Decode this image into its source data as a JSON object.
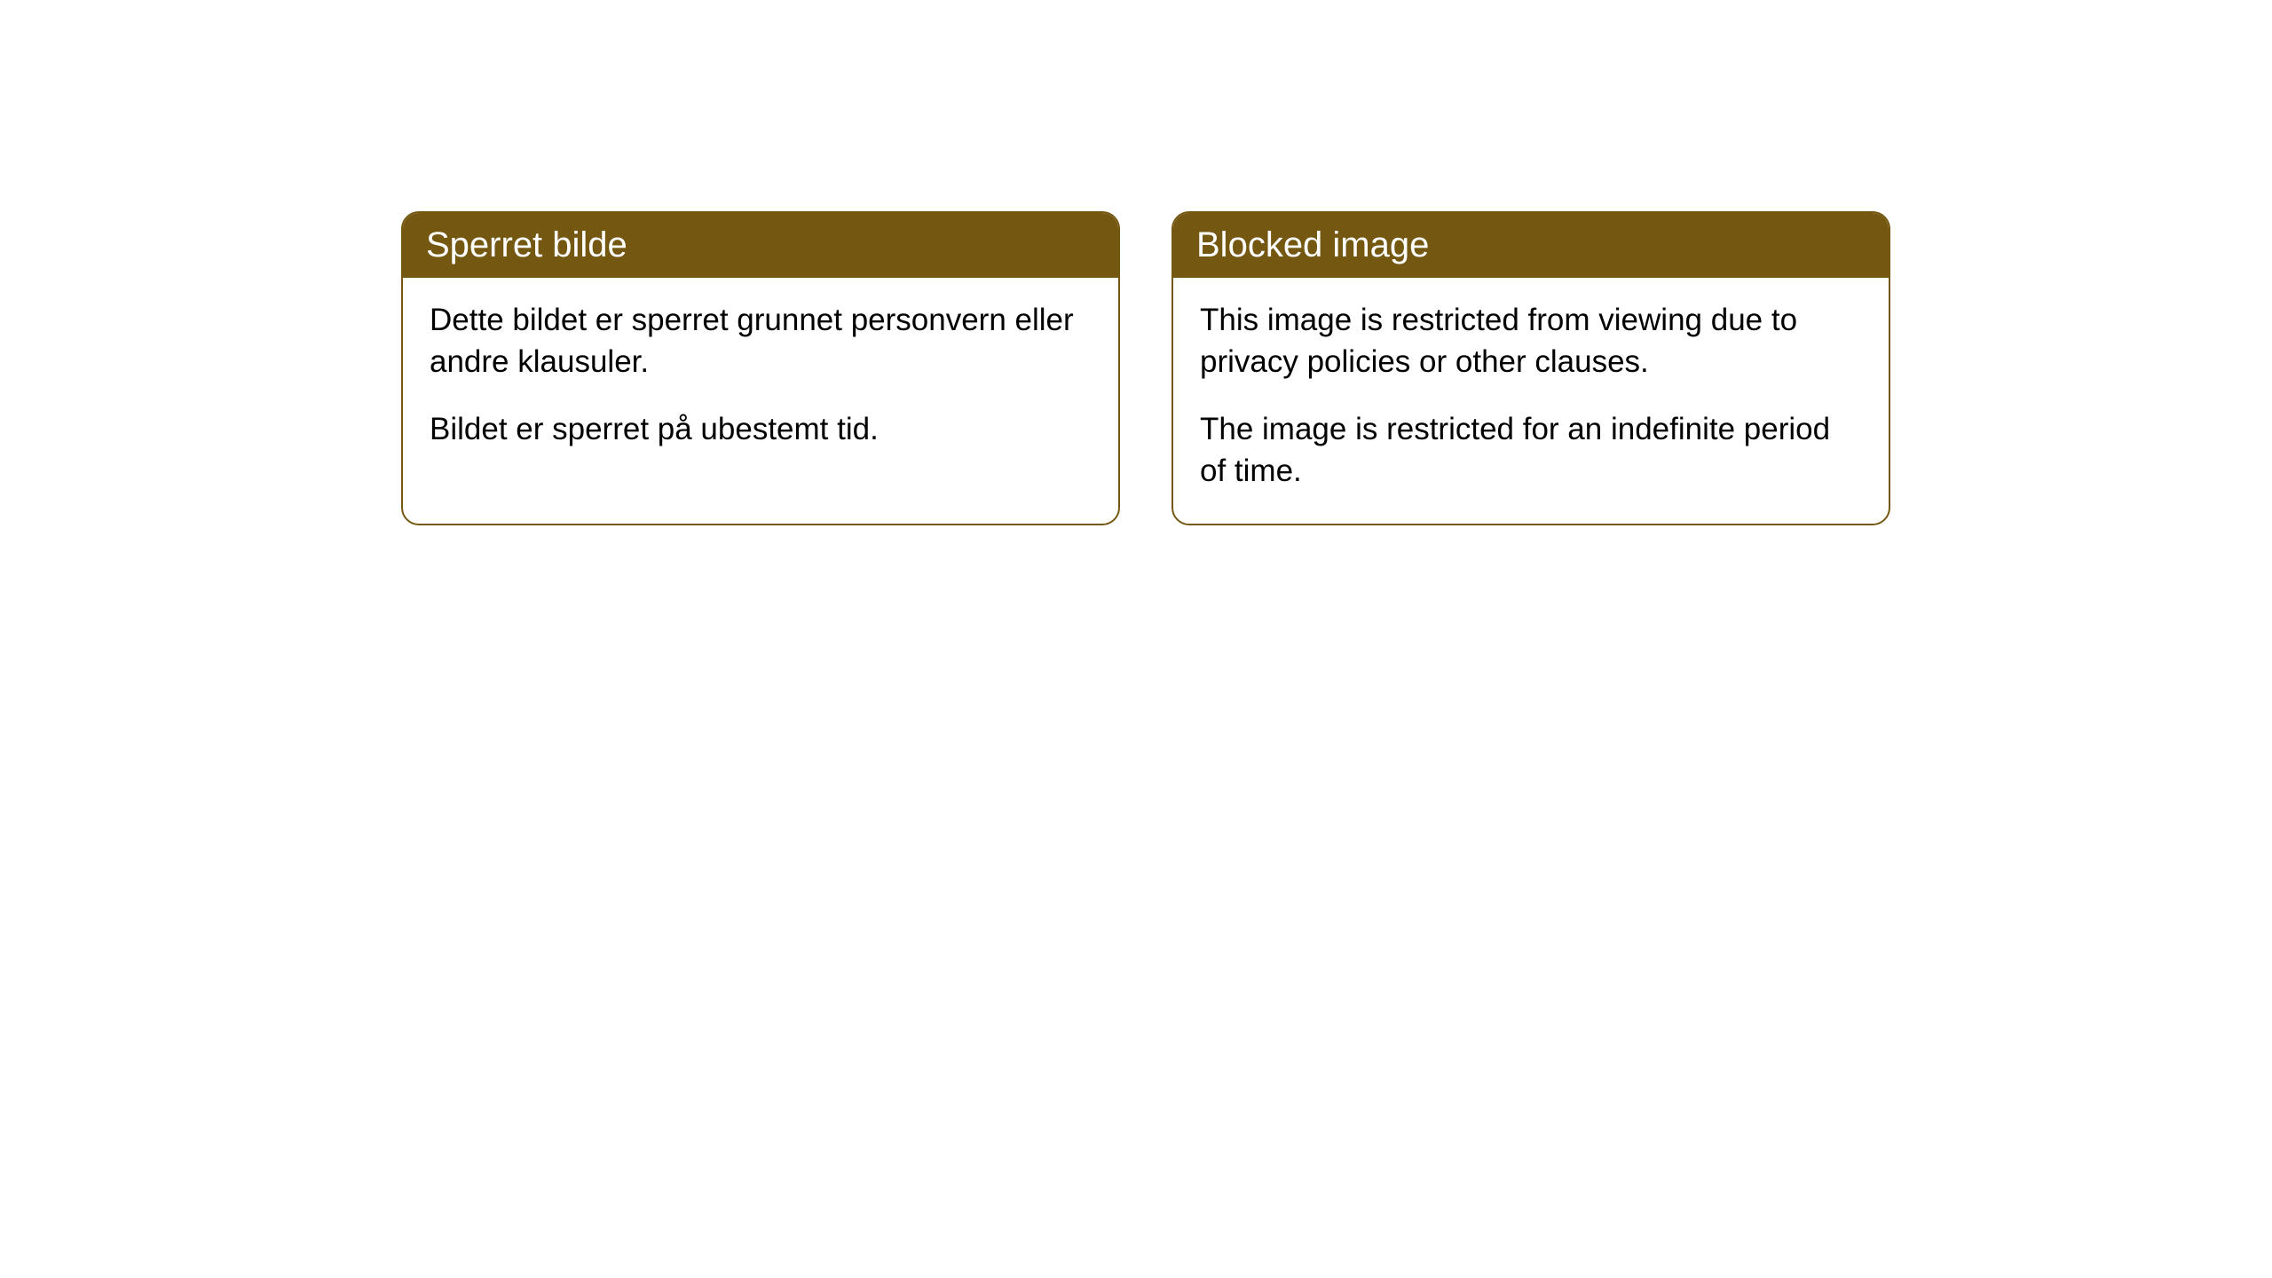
{
  "cards": [
    {
      "title": "Sperret bilde",
      "paragraph1": "Dette bildet er sperret grunnet personvern eller andre klausuler.",
      "paragraph2": "Bildet er sperret på ubestemt tid."
    },
    {
      "title": "Blocked image",
      "paragraph1": "This image is restricted from viewing due to privacy policies or other clauses.",
      "paragraph2": "The image is restricted for an indefinite period of time."
    }
  ],
  "style": {
    "header_background": "#745812",
    "header_text_color": "#ffffff",
    "border_color": "#745812",
    "body_background": "#ffffff",
    "body_text_color": "#000000",
    "border_radius": 20,
    "title_fontsize": 40,
    "body_fontsize": 35
  }
}
